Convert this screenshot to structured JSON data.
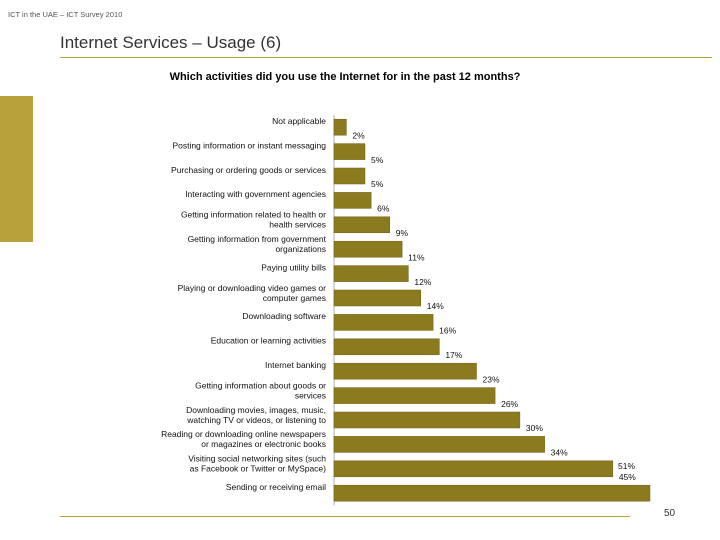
{
  "header": {
    "label": "ICT in the UAE – ICT Survey 2010"
  },
  "slide": {
    "title": "Internet Services – Usage (6)",
    "page_number": "50"
  },
  "colors": {
    "bar": "#8b7a1e",
    "bar_edge": "#6f6115",
    "accent": "#b8a13a"
  },
  "chart_data": {
    "type": "bar",
    "orientation": "horizontal",
    "title": "Which activities did you use the Internet for in the past 12 months?",
    "xlabel": "",
    "ylabel": "",
    "xlim": [
      0,
      51
    ],
    "grid": false,
    "categories": [
      "Not applicable",
      "Posting information or instant messaging",
      "Purchasing or ordering goods or services",
      "Interacting with government agencies",
      "Getting information related to health or health services",
      "Getting information from government organizations",
      "Paying utility bills",
      "Playing or downloading video games or computer games",
      "Downloading software",
      "Education or learning activities",
      "Internet banking",
      "Getting information about goods or services",
      "Downloading movies, images, music, watching TV or videos, or listening to radio or music",
      "Reading or downloading online newspapers or magazines or electronic books",
      "Visiting social networking sites (such as Facebook or Twitter or MySpace)",
      "Sending or receiving email"
    ],
    "values": [
      2,
      5,
      5,
      6,
      9,
      11,
      12,
      14,
      16,
      17,
      23,
      26,
      30,
      34,
      45,
      51
    ],
    "value_labels": [
      "2%",
      "5%",
      "5%",
      "6%",
      "9%",
      "11%",
      "12%",
      "14%",
      "16%",
      "17%",
      "23%",
      "26%",
      "30%",
      "34%",
      "45%",
      "51%"
    ]
  }
}
